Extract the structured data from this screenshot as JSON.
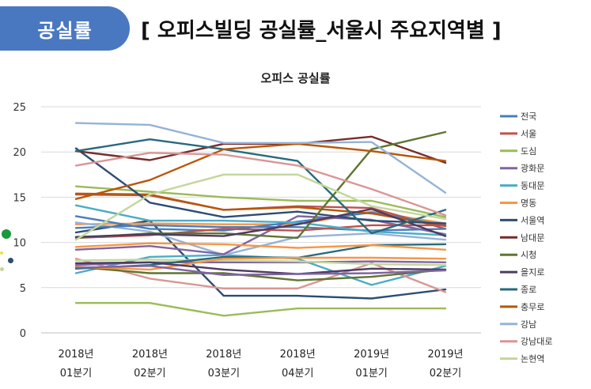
{
  "header": {
    "tab_label": "공실률",
    "title": "[ 오피스빌딩 공실률_서울시 주요지역별 ]"
  },
  "chart_data": {
    "type": "line",
    "title": "오피스 공실률",
    "xlabel": "",
    "ylabel": "",
    "ylim": [
      0,
      25
    ],
    "yticks": [
      0,
      5,
      10,
      15,
      20,
      25
    ],
    "grid": true,
    "legend_position": "right",
    "categories": [
      [
        "2018년",
        "01분기"
      ],
      [
        "2018년",
        "02분기"
      ],
      [
        "2018년",
        "03분기"
      ],
      [
        "2018년",
        "04분기"
      ],
      [
        "2019년",
        "01분기"
      ],
      [
        "2019년",
        "02분기"
      ]
    ],
    "series": [
      {
        "name": "전국",
        "color": "#4a7ebb",
        "values": [
          11.6,
          11.9,
          11.7,
          11.7,
          11.3,
          11.5
        ]
      },
      {
        "name": "서울",
        "color": "#c0504d",
        "values": [
          10.5,
          10.8,
          11.5,
          11.3,
          11.9,
          11.9
        ]
      },
      {
        "name": "도심",
        "color": "#9bbb59",
        "values": [
          16.2,
          15.6,
          15.0,
          14.6,
          14.6,
          12.8
        ]
      },
      {
        "name": "광화문",
        "color": "#8064a2",
        "values": [
          7.2,
          7.4,
          6.4,
          6.5,
          6.6,
          6.9
        ]
      },
      {
        "name": "동대문",
        "color": "#4bacc6",
        "values": [
          14.1,
          12.4,
          12.4,
          12.2,
          11.2,
          10.8
        ]
      },
      {
        "name": "명동",
        "color": "#f79646",
        "values": [
          9.5,
          9.9,
          9.8,
          9.4,
          9.7,
          9.2
        ]
      },
      {
        "name": "서울역",
        "color": "#2c4d75",
        "values": [
          20.4,
          14.4,
          12.8,
          13.4,
          12.4,
          12.1
        ]
      },
      {
        "name": "남대문",
        "color": "#772c2a",
        "values": [
          20.1,
          19.1,
          20.9,
          20.9,
          21.7,
          18.8
        ]
      },
      {
        "name": "시청",
        "color": "#5f7530",
        "values": [
          10.5,
          11.0,
          11.0,
          10.5,
          20.3,
          22.2
        ]
      },
      {
        "name": "을지로",
        "color": "#4d3b62",
        "values": [
          10.6,
          10.9,
          10.7,
          12.0,
          13.7,
          10.7
        ]
      },
      {
        "name": "종로",
        "color": "#276a7c",
        "values": [
          20.1,
          21.4,
          20.3,
          19.0,
          11.0,
          13.6
        ]
      },
      {
        "name": "충무로",
        "color": "#b65708",
        "values": [
          14.8,
          16.9,
          20.3,
          20.9,
          20.1,
          19.0
        ]
      },
      {
        "name": "강남",
        "color": "#95b3d7",
        "values": [
          23.2,
          23.0,
          21.0,
          21.0,
          21.1,
          15.5
        ]
      },
      {
        "name": "강남대로",
        "color": "#d99694",
        "values": [
          18.5,
          19.9,
          19.7,
          18.5,
          15.9,
          13.0
        ]
      },
      {
        "name": "논현역",
        "color": "#c3d69b",
        "values": [
          10.3,
          15.3,
          17.5,
          17.5,
          14.0,
          12.6
        ]
      }
    ],
    "extra_lines": [
      {
        "color": "#2c4d75",
        "values": [
          11.1,
          12.4,
          4.1,
          4.1,
          3.8,
          4.8
        ]
      },
      {
        "color": "#9bbb59",
        "values": [
          3.3,
          3.3,
          1.9,
          2.7,
          2.7,
          2.7
        ]
      },
      {
        "color": "#4bacc6",
        "values": [
          6.6,
          8.4,
          8.6,
          8.2,
          5.3,
          7.4
        ]
      },
      {
        "color": "#d99694",
        "values": [
          8.2,
          6.0,
          4.9,
          4.9,
          7.7,
          4.5
        ]
      },
      {
        "color": "#8064a2",
        "values": [
          7.5,
          7.8,
          7.8,
          7.8,
          7.9,
          7.8
        ]
      },
      {
        "color": "#f79646",
        "values": [
          12.0,
          12.1,
          12.0,
          12.0,
          13.4,
          12.1
        ]
      },
      {
        "color": "#5f7530",
        "values": [
          7.3,
          6.6,
          6.6,
          5.8,
          6.2,
          7.0
        ]
      },
      {
        "color": "#c3d69b",
        "values": [
          8.0,
          8.1,
          8.0,
          7.9,
          7.6,
          7.5
        ]
      },
      {
        "color": "#95b3d7",
        "values": [
          12.2,
          11.2,
          8.6,
          10.6,
          11.0,
          10.3
        ]
      },
      {
        "color": "#276a7c",
        "values": [
          7.1,
          7.5,
          8.4,
          8.3,
          9.7,
          9.8
        ]
      },
      {
        "color": "#c0504d",
        "values": [
          15.3,
          15.2,
          13.6,
          14.0,
          13.8,
          11.5
        ]
      },
      {
        "color": "#4a7ebb",
        "values": [
          12.9,
          11.5,
          11.3,
          12.3,
          13.3,
          11.9
        ]
      },
      {
        "color": "#b65708",
        "values": [
          15.4,
          15.3,
          13.6,
          13.9,
          13.2,
          11.8
        ]
      },
      {
        "color": "#8064a2",
        "values": [
          9.2,
          9.6,
          8.7,
          12.9,
          12.5,
          10.9
        ]
      },
      {
        "color": "#f79646",
        "values": [
          7.3,
          7.0,
          8.2,
          8.3,
          8.3,
          8.2
        ]
      },
      {
        "color": "#4d3b62",
        "values": [
          7.7,
          7.8,
          7.0,
          6.5,
          7.1,
          7.0
        ]
      }
    ]
  },
  "decor": {
    "dot_colors": [
      "#1a9a3a",
      "#2c4d75",
      "#c3d69b",
      "#e8e34a"
    ]
  }
}
